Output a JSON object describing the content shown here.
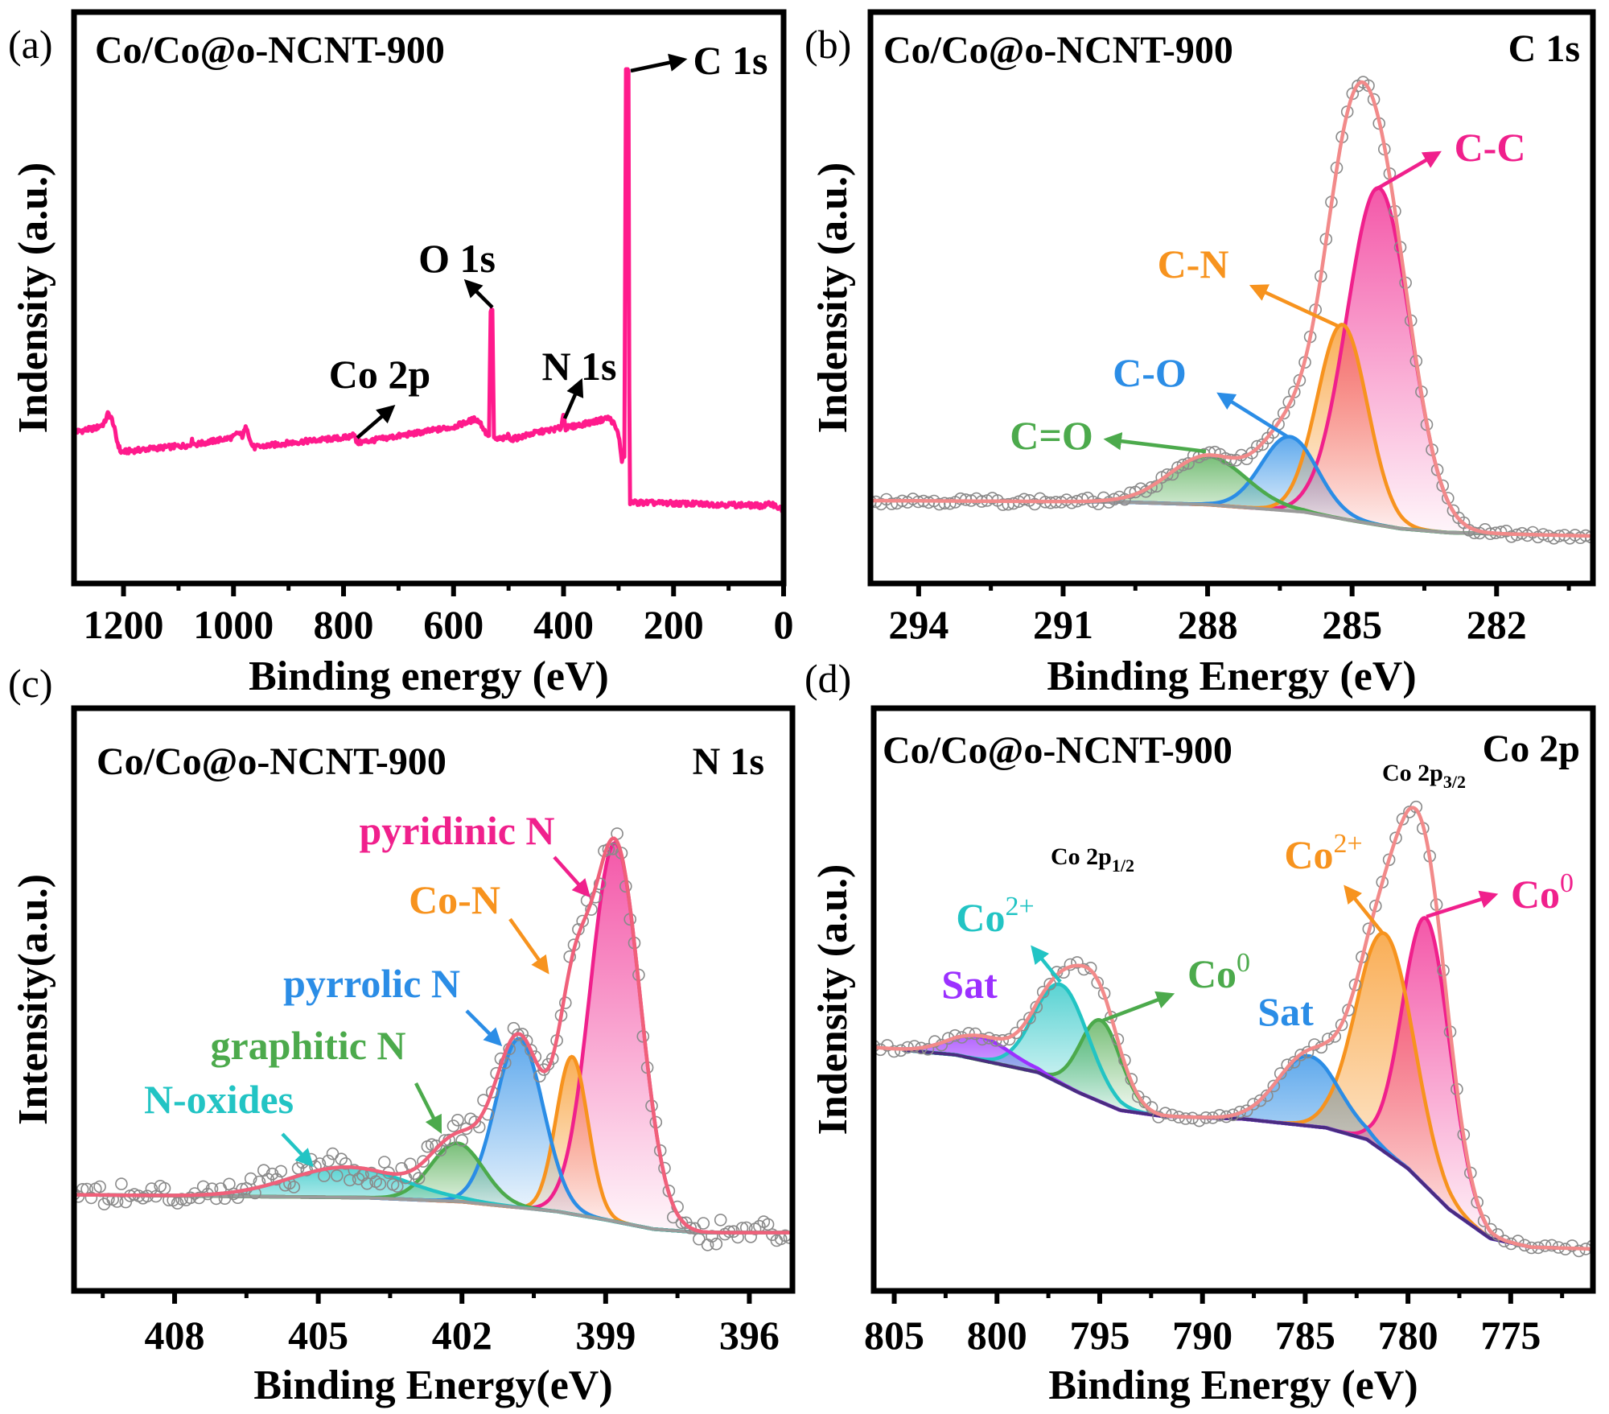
{
  "chart_data": [
    {
      "panel_label": "(a)",
      "type": "line",
      "title": "Co/Co@o-NCNT-900",
      "xlabel": "Binding energy (eV)",
      "ylabel": "Indensity (a.u.)",
      "xlim": [
        1290,
        0
      ],
      "ylim": [
        0,
        100
      ],
      "xticks": [
        1200,
        1000,
        800,
        600,
        400,
        200,
        0
      ],
      "x_reversed": true,
      "grid": false,
      "line_color": "#ff1a8c",
      "series": [
        {
          "points": [
            [
              1290,
              26.5
            ],
            [
              1250,
              27.2
            ],
            [
              1235,
              28
            ],
            [
              1228,
              29.8
            ],
            [
              1220,
              28.5
            ],
            [
              1212,
              25
            ],
            [
              1205,
              23
            ],
            [
              1150,
              23.6
            ],
            [
              1080,
              24.2
            ],
            [
              1075,
              25
            ],
            [
              1070,
              24.3
            ],
            [
              1000,
              25.6
            ],
            [
              992,
              26.4
            ],
            [
              984,
              25.8
            ],
            [
              976,
              27.6
            ],
            [
              968,
              24.4
            ],
            [
              962,
              23.8
            ],
            [
              900,
              24.6
            ],
            [
              790,
              25.6
            ],
            [
              782,
              26.4
            ],
            [
              776,
              24.6
            ],
            [
              700,
              25.8
            ],
            [
              600,
              27.4
            ],
            [
              560,
              28.8
            ],
            [
              552,
              28.2
            ],
            [
              540,
              26.2
            ],
            [
              535,
              26
            ],
            [
              533,
              47.8
            ],
            [
              529,
              47.8
            ],
            [
              527,
              25.2
            ],
            [
              505,
              25.4
            ],
            [
              500,
              26
            ],
            [
              495,
              25.2
            ],
            [
              450,
              26.4
            ],
            [
              405,
              27.2
            ],
            [
              400,
              29.8
            ],
            [
              396,
              27.2
            ],
            [
              340,
              28.4
            ],
            [
              318,
              29
            ],
            [
              310,
              28.2
            ],
            [
              300,
              26
            ],
            [
              294,
              21.6
            ],
            [
              289,
              22.2
            ],
            [
              287,
              90
            ],
            [
              282,
              90
            ],
            [
              280,
              14.2
            ],
            [
              200,
              14
            ],
            [
              100,
              13.8
            ],
            [
              40,
              13.6
            ],
            [
              20,
              13.9
            ],
            [
              8,
              13.2
            ],
            [
              0,
              12.6
            ]
          ]
        }
      ],
      "annotations": [
        {
          "text": "C 1s",
          "color": "#000000"
        },
        {
          "text": "O 1s",
          "color": "#000000"
        },
        {
          "text": "Co 2p",
          "color": "#000000"
        },
        {
          "text": "N 1s",
          "color": "#000000"
        }
      ]
    },
    {
      "panel_label": "(b)",
      "type": "line",
      "title": "Co/Co@o-NCNT-900",
      "region": "C 1s",
      "xlabel": "Binding Energy (eV)",
      "ylabel": "Indensity (a.u.)",
      "xlim": [
        295,
        280
      ],
      "ylim": [
        0,
        100
      ],
      "xticks": [
        294,
        291,
        288,
        285,
        282
      ],
      "x_reversed": true,
      "grid": false,
      "envelope_color": "#f28a8a",
      "background_color": "#9a9a9a",
      "fit_range": [
        290.5,
        281.2
      ],
      "background": [
        [
          295,
          14.5
        ],
        [
          290,
          14.3
        ],
        [
          288,
          13.8
        ],
        [
          286,
          12.5
        ],
        [
          285,
          11
        ],
        [
          284,
          9.6
        ],
        [
          283,
          8.9
        ],
        [
          280,
          8.3
        ]
      ],
      "components": [
        {
          "name": "C-C",
          "center": 284.45,
          "height": 59,
          "sigma": 0.66,
          "color": "#f0208c"
        },
        {
          "name": "C-N",
          "center": 285.2,
          "height": 34,
          "sigma": 0.52,
          "color": "#f7931e"
        },
        {
          "name": "C-O",
          "center": 286.3,
          "height": 13,
          "sigma": 0.58,
          "color": "#2b8de6"
        },
        {
          "name": "C=O",
          "center": 288.0,
          "height": 8.5,
          "sigma": 0.8,
          "color": "#4caa4c"
        }
      ],
      "annotations": [
        {
          "text": "C-C",
          "color": "#f0208c"
        },
        {
          "text": "C-N",
          "color": "#f7931e"
        },
        {
          "text": "C-O",
          "color": "#2b8de6"
        },
        {
          "text": "C=O",
          "color": "#4caa4c"
        }
      ]
    },
    {
      "panel_label": "(c)",
      "type": "line",
      "title": "Co/Co@o-NCNT-900",
      "region": "N 1s",
      "xlabel": "Binding Energy(eV)",
      "ylabel": "Intensity(a.u.)",
      "xlim": [
        410.1,
        395.1
      ],
      "ylim": [
        0,
        100
      ],
      "xticks": [
        408,
        405,
        402,
        399,
        396
      ],
      "x_reversed": true,
      "grid": false,
      "envelope_color": "#f0607a",
      "background_color": "#9a9a9a",
      "fit_range": [
        410,
        395.2
      ],
      "background": [
        [
          410.1,
          16.5
        ],
        [
          404,
          16
        ],
        [
          402,
          15.3
        ],
        [
          400,
          13.6
        ],
        [
          399,
          12.2
        ],
        [
          398,
          10.6
        ],
        [
          397,
          10
        ],
        [
          395,
          10
        ]
      ],
      "components": [
        {
          "name": "pyridinic N",
          "center": 398.8,
          "height": 65,
          "sigma": 0.52,
          "color": "#f0208c"
        },
        {
          "name": "Co-N",
          "center": 399.7,
          "height": 27,
          "sigma": 0.33,
          "color": "#f7931e"
        },
        {
          "name": "pyrrolic N",
          "center": 400.8,
          "height": 29,
          "sigma": 0.5,
          "color": "#2b8de6"
        },
        {
          "name": "graphitic N",
          "center": 402.1,
          "height": 10,
          "sigma": 0.55,
          "color": "#4caa4c"
        },
        {
          "name": "N-oxides",
          "center": 404.4,
          "height": 5.2,
          "sigma": 1.2,
          "color": "#22c4c4"
        }
      ],
      "annotations": [
        {
          "text": "pyridinic N",
          "color": "#f0208c"
        },
        {
          "text": "Co-N",
          "color": "#f7931e"
        },
        {
          "text": "pyrrolic N",
          "color": "#2b8de6"
        },
        {
          "text": "graphitic N",
          "color": "#4caa4c"
        },
        {
          "text": "N-oxides",
          "color": "#22c4c4"
        }
      ]
    },
    {
      "panel_label": "(d)",
      "type": "line",
      "title": "Co/Co@o-NCNT-900",
      "region": "Co 2p",
      "xlabel": "Binding Energy (eV)",
      "ylabel": "Indensity (a.u.)",
      "xlim": [
        806,
        771
      ],
      "ylim": [
        0,
        100
      ],
      "xticks": [
        805,
        800,
        795,
        790,
        785,
        780,
        775
      ],
      "x_reversed": true,
      "grid": false,
      "envelope_color": "#f28a8a",
      "background_color": "#4a2c80",
      "fit_range": [
        804.6,
        772.6
      ],
      "background": [
        [
          806,
          41.8
        ],
        [
          802,
          40.5
        ],
        [
          798,
          37.5
        ],
        [
          796,
          34
        ],
        [
          794,
          31
        ],
        [
          792,
          30
        ],
        [
          788,
          29.5
        ],
        [
          784,
          28
        ],
        [
          782,
          26
        ],
        [
          780,
          21
        ],
        [
          778,
          14
        ],
        [
          776,
          9
        ],
        [
          774,
          7.5
        ],
        [
          771,
          7.2
        ]
      ],
      "components": [
        {
          "name": "Co0 (2p3/2)",
          "center": 779.1,
          "height": 46,
          "sigma": 1.15,
          "color": "#f0208c"
        },
        {
          "name": "Co2+ (2p3/2)",
          "center": 781.1,
          "height": 37.5,
          "sigma": 1.4,
          "color": "#f7931e"
        },
        {
          "name": "Sat (2p3/2)",
          "center": 784.85,
          "height": 12,
          "sigma": 1.5,
          "color": "#2b8de6"
        },
        {
          "name": "Co0 (2p1/2)",
          "center": 794.95,
          "height": 14,
          "sigma": 1.0,
          "color": "#4caa4c"
        },
        {
          "name": "Co2+ (2p1/2)",
          "center": 796.85,
          "height": 17,
          "sigma": 1.3,
          "color": "#22c4c4"
        },
        {
          "name": "Sat (2p1/2)",
          "center": 800.85,
          "height": 4,
          "sigma": 1.5,
          "color": "#9b30ff"
        }
      ],
      "subpeak_labels": [
        {
          "text": "Co 2p",
          "sub": "3/2"
        },
        {
          "text": "Co 2p",
          "sub": "1/2"
        }
      ],
      "annotations": [
        {
          "text": "Co",
          "sup": "2+",
          "color": "#22c4c4"
        },
        {
          "text": "Sat",
          "color": "#9b30ff"
        },
        {
          "text": "Co",
          "sup": "0",
          "color": "#4caa4c"
        },
        {
          "text": "Sat",
          "color": "#2b8de6"
        },
        {
          "text": "Co",
          "sup": "2+",
          "color": "#f7931e"
        },
        {
          "text": "Co",
          "sup": "0",
          "color": "#f0208c"
        }
      ]
    }
  ]
}
